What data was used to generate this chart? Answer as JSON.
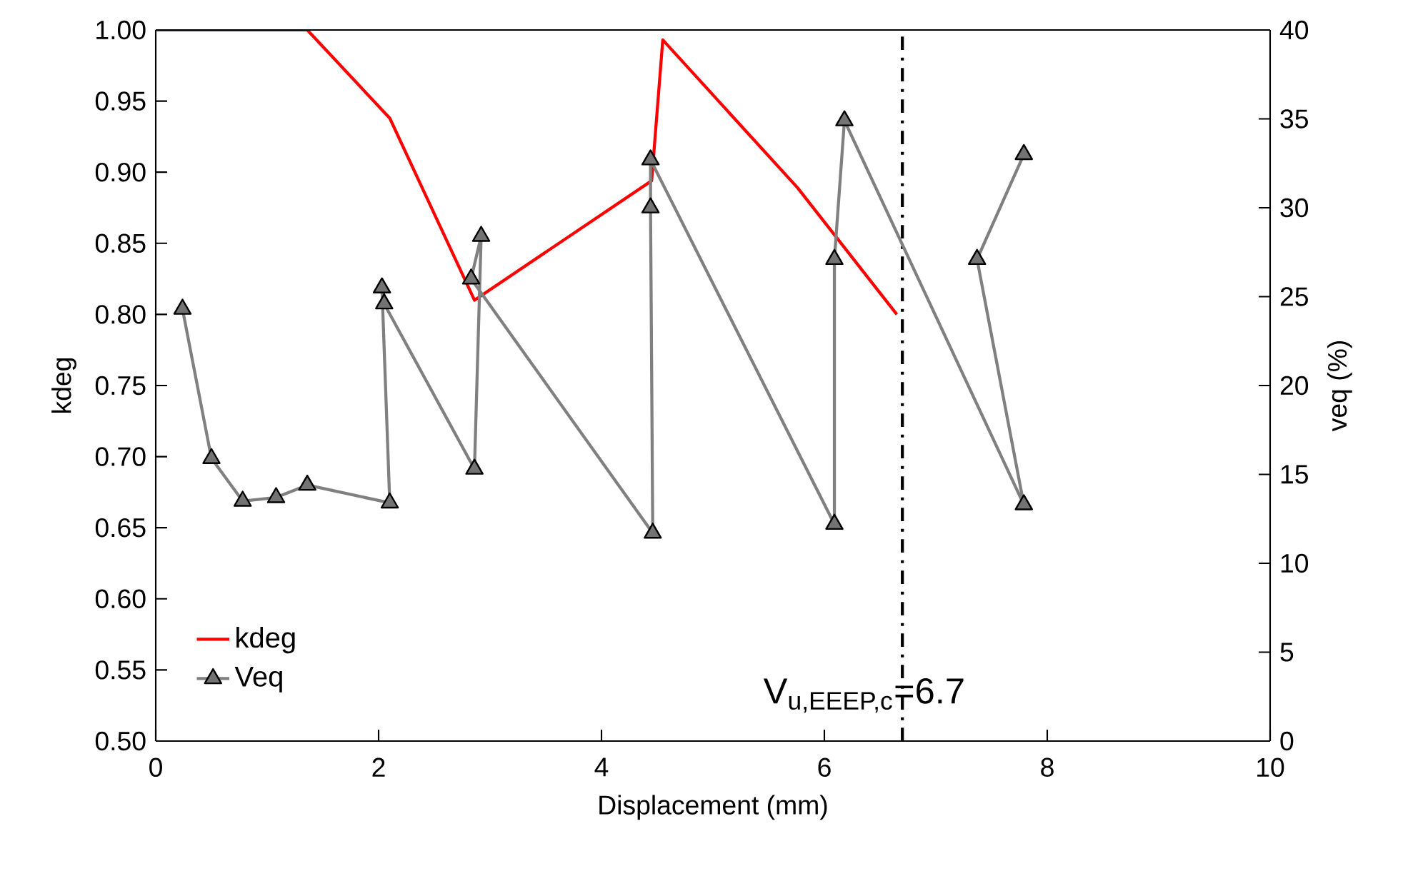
{
  "chart_data": {
    "type": "line",
    "xlabel": "Displacement (mm)",
    "ylabel": "kdeg",
    "y2label": "veq (%)",
    "xlim": [
      0,
      10
    ],
    "xticks": [
      0,
      2,
      4,
      6,
      8,
      10
    ],
    "ylim": [
      0.5,
      1.0
    ],
    "yticks": [
      {
        "value": 0.5,
        "label": "0.50"
      },
      {
        "value": 0.55,
        "label": "0.55"
      },
      {
        "value": 0.6,
        "label": "0.60"
      },
      {
        "value": 0.65,
        "label": "0.65"
      },
      {
        "value": 0.7,
        "label": "0.70"
      },
      {
        "value": 0.75,
        "label": "0.75"
      },
      {
        "value": 0.8,
        "label": "0.80"
      },
      {
        "value": 0.85,
        "label": "0.85"
      },
      {
        "value": 0.9,
        "label": "0.90"
      },
      {
        "value": 0.95,
        "label": "0.95"
      },
      {
        "value": 1.0,
        "label": "1.00"
      }
    ],
    "y2lim": [
      0,
      40
    ],
    "y2ticks": [
      0,
      5,
      10,
      15,
      20,
      25,
      30,
      35,
      40
    ],
    "legend": "bottom left",
    "series": [
      {
        "name": "kdeg",
        "color": "#ff0000",
        "marker": "none",
        "x": [
          0,
          1.36,
          2.1,
          2.86,
          4.45,
          4.55,
          5.76,
          6.65
        ],
        "values": [
          1.0,
          1.0,
          0.938,
          0.81,
          0.894,
          0.993,
          0.889,
          0.8
        ]
      },
      {
        "name": "Veq",
        "color": "#808080",
        "marker": "triangle",
        "axis": "y2",
        "x": [
          0.24,
          0.5,
          0.78,
          1.08,
          1.36,
          2.1,
          2.03,
          2.05,
          2.86,
          2.92,
          2.83,
          4.46,
          4.44,
          4.44,
          6.09,
          6.09,
          6.18,
          7.79,
          7.37,
          7.79
        ],
        "values": [
          24.3,
          15.9,
          13.5,
          13.7,
          14.4,
          13.4,
          25.5,
          24.6,
          15.3,
          28.4,
          26.0,
          11.7,
          30.0,
          32.7,
          12.2,
          27.1,
          34.9,
          13.3,
          27.1,
          33.0
        ]
      }
    ],
    "ref_lines": [
      {
        "axis": "x",
        "value": 6.7,
        "label": "V$_{u,EEEP,c}$=6.7",
        "color": "#000000",
        "line_style": "dashdot"
      }
    ]
  }
}
